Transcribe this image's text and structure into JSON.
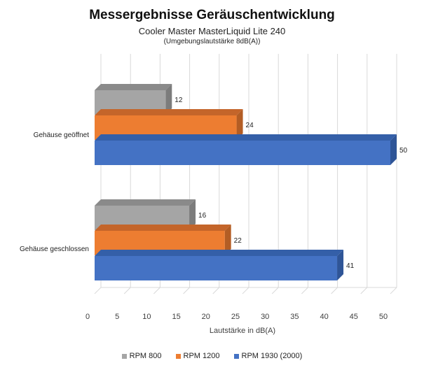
{
  "chart_data": {
    "type": "bar",
    "orientation": "horizontal",
    "title": "Messergebnisse Geräuschentwicklung",
    "subtitle": "Cooler Master MasterLiquid Lite 240",
    "subtitle2": "(Umgebungslautstärke 8dB(A))",
    "xlabel": "Lautstärke in dB(A)",
    "ylabel": "",
    "xlim": [
      0,
      50
    ],
    "xticks": [
      0,
      5,
      10,
      15,
      20,
      25,
      30,
      35,
      40,
      45,
      50
    ],
    "grid": true,
    "legend_position": "bottom",
    "categories": [
      "Gehäuse geöffnet",
      "Gehäuse geschlossen"
    ],
    "series": [
      {
        "name": "RPM 800",
        "values": [
          12,
          16
        ],
        "color": "#a5a5a5",
        "side_color": "#7c7c7c",
        "top_color": "#8a8a8a"
      },
      {
        "name": "RPM 1200",
        "values": [
          24,
          22
        ],
        "color": "#ed7d31",
        "side_color": "#b35d24",
        "top_color": "#c4652a"
      },
      {
        "name": "RPM 1930 (2000)",
        "values": [
          50,
          41
        ],
        "color": "#4472c4",
        "side_color": "#2f5597",
        "top_color": "#345fa8"
      }
    ]
  }
}
